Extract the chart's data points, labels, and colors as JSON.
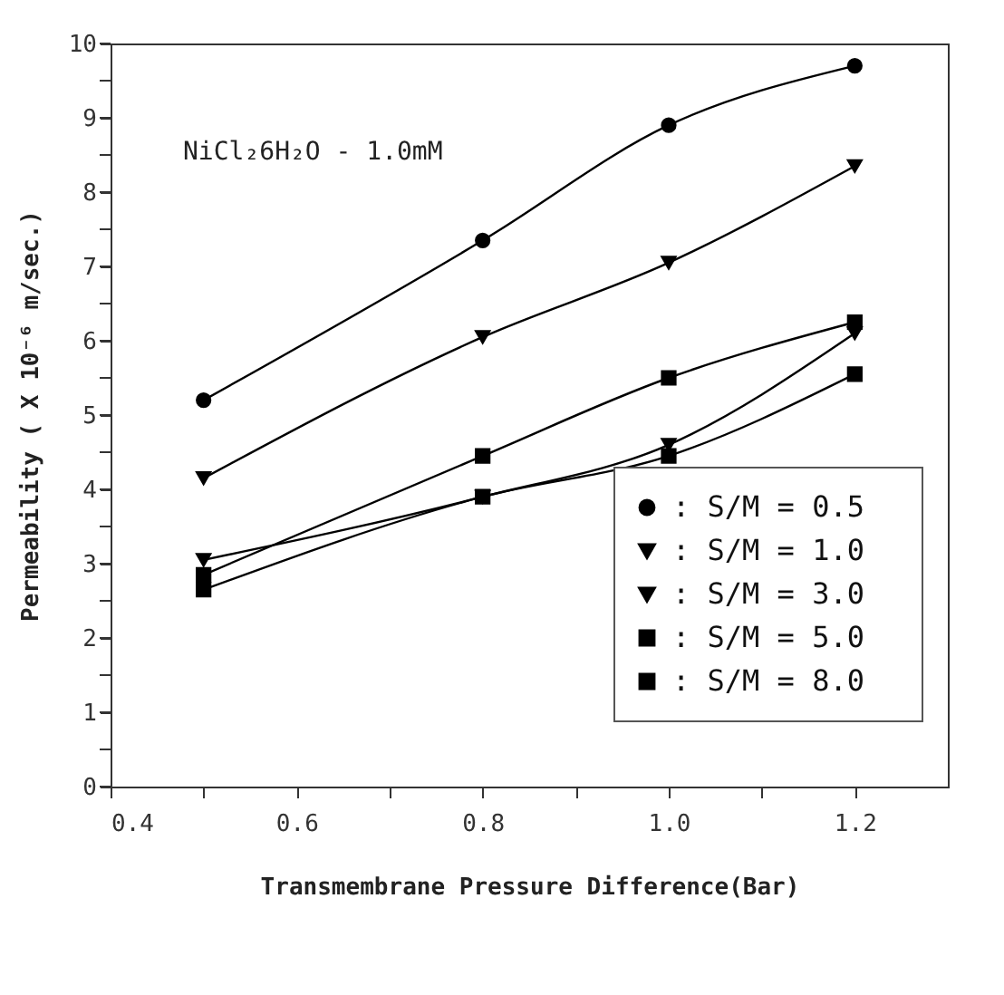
{
  "chart_data": {
    "type": "line",
    "xlabel": "Transmembrane Pressure Difference(Bar)",
    "ylabel": "Permeability ( X 10⁻⁶ m/sec.)",
    "annotations": [
      "NiCl₂6H₂O - 1.0mM"
    ],
    "x": [
      0.5,
      0.8,
      1.0,
      1.2
    ],
    "series": [
      {
        "name": ": S/M = 0.5",
        "color": "#000000",
        "marker": "circle",
        "values": [
          5.2,
          7.35,
          8.9,
          9.7
        ]
      },
      {
        "name": ": S/M = 1.0",
        "color": "#000000",
        "marker": "triangle",
        "values": [
          4.15,
          6.05,
          7.05,
          8.35
        ]
      },
      {
        "name": ": S/M = 3.0",
        "color": "#000000",
        "marker": "triangle",
        "values": [
          3.05,
          3.9,
          4.6,
          6.1
        ]
      },
      {
        "name": ": S/M = 5.0",
        "color": "#000000",
        "marker": "square",
        "values": [
          2.65,
          3.9,
          4.45,
          5.55
        ]
      },
      {
        "name": ": S/M = 8.0",
        "color": "#000000",
        "marker": "square",
        "values": [
          2.85,
          4.45,
          5.5,
          6.25
        ]
      }
    ],
    "xlim": [
      0.4,
      1.3
    ],
    "xticks": [
      0.4,
      {
        "value": 0.5,
        "label": null
      },
      0.6,
      {
        "value": 0.7,
        "label": null
      },
      0.8,
      {
        "value": 0.9,
        "label": null
      },
      {
        "value": 1.0,
        "label": "1.0"
      },
      {
        "value": 1.1,
        "label": null
      },
      1.2
    ],
    "ylim": [
      0,
      10
    ],
    "yticks": [
      0,
      {
        "value": 0.5,
        "label": null
      },
      1,
      {
        "value": 1.5,
        "label": null
      },
      2,
      {
        "value": 2.5,
        "label": null
      },
      3,
      {
        "value": 3.5,
        "label": null
      },
      4,
      {
        "value": 4.5,
        "label": null
      },
      5,
      {
        "value": 5.5,
        "label": null
      },
      6,
      {
        "value": 6.5,
        "label": null
      },
      7,
      {
        "value": 7.5,
        "label": null
      },
      8,
      {
        "value": 8.5,
        "label": null
      },
      9,
      {
        "value": 9.5,
        "label": null
      },
      10
    ],
    "grid": false,
    "legend": "bottom right",
    "line_style": "solid"
  }
}
